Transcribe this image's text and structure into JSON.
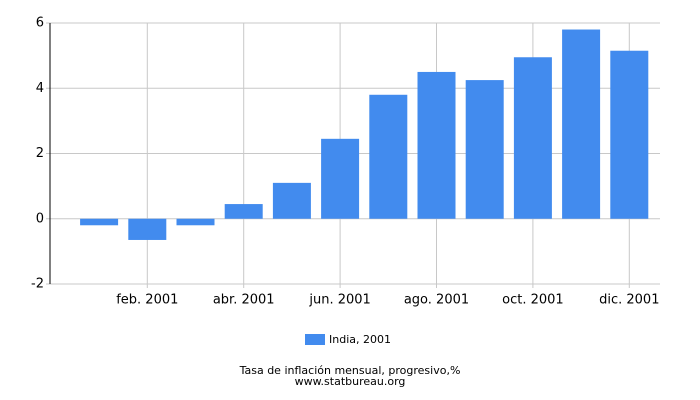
{
  "chart_data": {
    "type": "bar",
    "categories": [
      null,
      "feb. 2001",
      null,
      "abr. 2001",
      null,
      "jun. 2001",
      null,
      "ago. 2001",
      null,
      "oct. 2001",
      null,
      "dic. 2001"
    ],
    "series": [
      {
        "name": "India, 2001",
        "color": "#428bee",
        "values": [
          -0.2,
          -0.65,
          -0.2,
          0.45,
          1.1,
          2.45,
          3.8,
          4.5,
          4.25,
          4.95,
          5.8,
          5.15
        ]
      }
    ],
    "ylim": [
      -2,
      6
    ],
    "yticks": [
      -2,
      0,
      2,
      4,
      6
    ],
    "grid": true,
    "footer": [
      "Tasa de inflación mensual, progresivo,%",
      "www.statbureau.org"
    ]
  }
}
